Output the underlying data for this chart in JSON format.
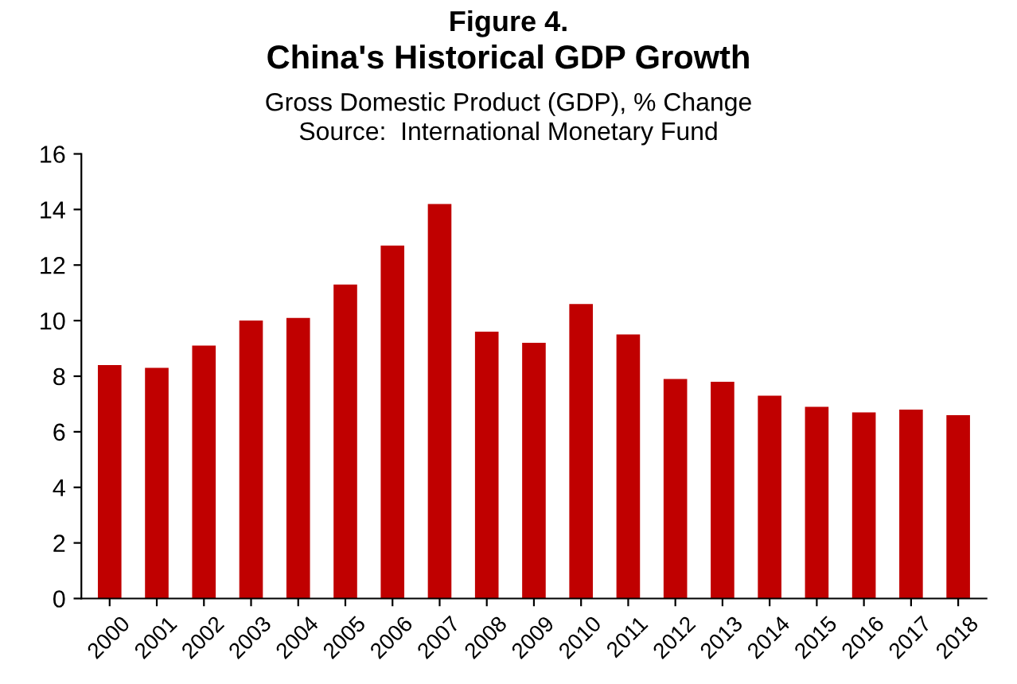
{
  "chart_data": {
    "type": "bar",
    "title": "China's Historical GDP Growth",
    "subtitle": "Gross Domestic Product (GDP), % Change\nSource:  International Monetary Fund",
    "annotations": [
      "Figure 4."
    ],
    "categories": [
      "2000",
      "2001",
      "2002",
      "2003",
      "2004",
      "2005",
      "2006",
      "2007",
      "2008",
      "2009",
      "2010",
      "2011",
      "2012",
      "2013",
      "2014",
      "2015",
      "2016",
      "2017",
      "2018"
    ],
    "values": [
      8.4,
      8.3,
      9.1,
      10.0,
      10.1,
      11.3,
      12.7,
      14.2,
      9.6,
      9.2,
      10.6,
      9.5,
      7.9,
      7.8,
      7.3,
      6.9,
      6.7,
      6.8,
      6.6
    ],
    "color": "#c00000",
    "ylim": [
      0,
      16
    ],
    "yticks": [
      0,
      2,
      4,
      6,
      8,
      10,
      12,
      14,
      16
    ],
    "grid": false,
    "legend": false
  }
}
